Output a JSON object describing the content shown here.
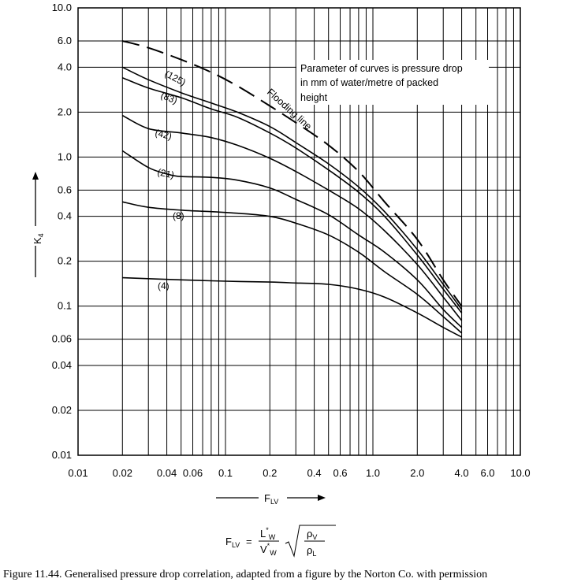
{
  "chart_data": {
    "type": "line",
    "x_scale": "log",
    "y_scale": "log",
    "xlim": [
      0.01,
      10.0
    ],
    "ylim": [
      0.01,
      10.0
    ],
    "x_tick_labels": [
      "0.01",
      "0.02",
      "0.04",
      "0.06",
      "0.1",
      "0.2",
      "0.4",
      "0.6",
      "1.0",
      "2.0",
      "4.0",
      "6.0",
      "10.0"
    ],
    "x_tick_values": [
      0.01,
      0.02,
      0.04,
      0.06,
      0.1,
      0.2,
      0.4,
      0.6,
      1.0,
      2.0,
      4.0,
      6.0,
      10.0
    ],
    "y_tick_labels": [
      "0.01",
      "0.02",
      "0.04",
      "0.06",
      "0.1",
      "0.2",
      "0.4",
      "0.6",
      "1.0",
      "2.0",
      "4.0",
      "6.0",
      "10.0"
    ],
    "y_tick_values": [
      0.01,
      0.02,
      0.04,
      0.06,
      0.1,
      0.2,
      0.4,
      0.6,
      1.0,
      2.0,
      4.0,
      6.0,
      10.0
    ],
    "grid": true,
    "xlabel": "F",
    "xlabel_sub": "LV",
    "ylabel": "K",
    "ylabel_sub": "4",
    "annotation": {
      "lines": [
        "Parameter of curves is pressure drop",
        "in mm of water/metre of packed",
        "height"
      ]
    },
    "series": [
      {
        "name": "Flooding line",
        "style": "dashed",
        "x": [
          0.02,
          0.03,
          0.05,
          0.08,
          0.12,
          0.2,
          0.3,
          0.5,
          0.8,
          1.2,
          2.0,
          3.0,
          4.0
        ],
        "y": [
          6.0,
          5.4,
          4.5,
          3.7,
          3.0,
          2.2,
          1.7,
          1.2,
          0.8,
          0.5,
          0.28,
          0.15,
          0.1
        ]
      },
      {
        "name": "(125)",
        "style": "solid",
        "x": [
          0.02,
          0.03,
          0.05,
          0.08,
          0.12,
          0.2,
          0.3,
          0.5,
          0.8,
          1.2,
          2.0,
          3.0,
          4.0
        ],
        "y": [
          4.0,
          3.3,
          2.7,
          2.3,
          2.0,
          1.6,
          1.25,
          0.9,
          0.63,
          0.43,
          0.24,
          0.14,
          0.095
        ]
      },
      {
        "name": "(83)",
        "style": "solid",
        "x": [
          0.02,
          0.03,
          0.05,
          0.08,
          0.12,
          0.2,
          0.3,
          0.5,
          0.8,
          1.2,
          2.0,
          3.0,
          4.0
        ],
        "y": [
          3.4,
          2.9,
          2.5,
          2.1,
          1.85,
          1.45,
          1.15,
          0.82,
          0.58,
          0.4,
          0.22,
          0.13,
          0.09
        ]
      },
      {
        "name": "(42)",
        "style": "solid",
        "x": [
          0.02,
          0.03,
          0.05,
          0.08,
          0.12,
          0.2,
          0.3,
          0.5,
          0.8,
          1.2,
          2.0,
          3.0,
          4.0
        ],
        "y": [
          1.9,
          1.55,
          1.45,
          1.35,
          1.2,
          0.98,
          0.8,
          0.6,
          0.45,
          0.32,
          0.19,
          0.115,
          0.08
        ]
      },
      {
        "name": "(21)",
        "style": "solid",
        "x": [
          0.02,
          0.03,
          0.04,
          0.05,
          0.08,
          0.12,
          0.2,
          0.3,
          0.5,
          0.8,
          1.2,
          2.0,
          3.0,
          4.0
        ],
        "y": [
          1.1,
          0.85,
          0.77,
          0.74,
          0.73,
          0.7,
          0.62,
          0.52,
          0.41,
          0.3,
          0.23,
          0.15,
          0.095,
          0.072
        ]
      },
      {
        "name": "(8)",
        "style": "solid",
        "x": [
          0.02,
          0.03,
          0.05,
          0.08,
          0.12,
          0.2,
          0.3,
          0.5,
          0.8,
          1.2,
          2.0,
          3.0,
          4.0
        ],
        "y": [
          0.5,
          0.46,
          0.44,
          0.43,
          0.42,
          0.4,
          0.36,
          0.3,
          0.23,
          0.17,
          0.12,
          0.085,
          0.066
        ]
      },
      {
        "name": "(4)",
        "style": "solid",
        "x": [
          0.02,
          0.05,
          0.1,
          0.2,
          0.3,
          0.5,
          0.8,
          1.2,
          2.0,
          3.0,
          4.0
        ],
        "y": [
          0.155,
          0.15,
          0.147,
          0.145,
          0.143,
          0.14,
          0.13,
          0.115,
          0.09,
          0.072,
          0.062
        ]
      }
    ]
  },
  "formula": {
    "lhs": "F",
    "lhs_sub": "LV",
    "equals": "=",
    "num": "L",
    "num_sub": "W",
    "num_sup": "*",
    "den": "V",
    "den_sub": "W",
    "den_sup": "*",
    "rho_num": "ρ",
    "rho_num_sub": "V",
    "rho_den": "ρ",
    "rho_den_sub": "L"
  },
  "caption": "Figure 11.44.   Generalised pressure drop correlation, adapted from a figure by the Norton Co. with permission"
}
